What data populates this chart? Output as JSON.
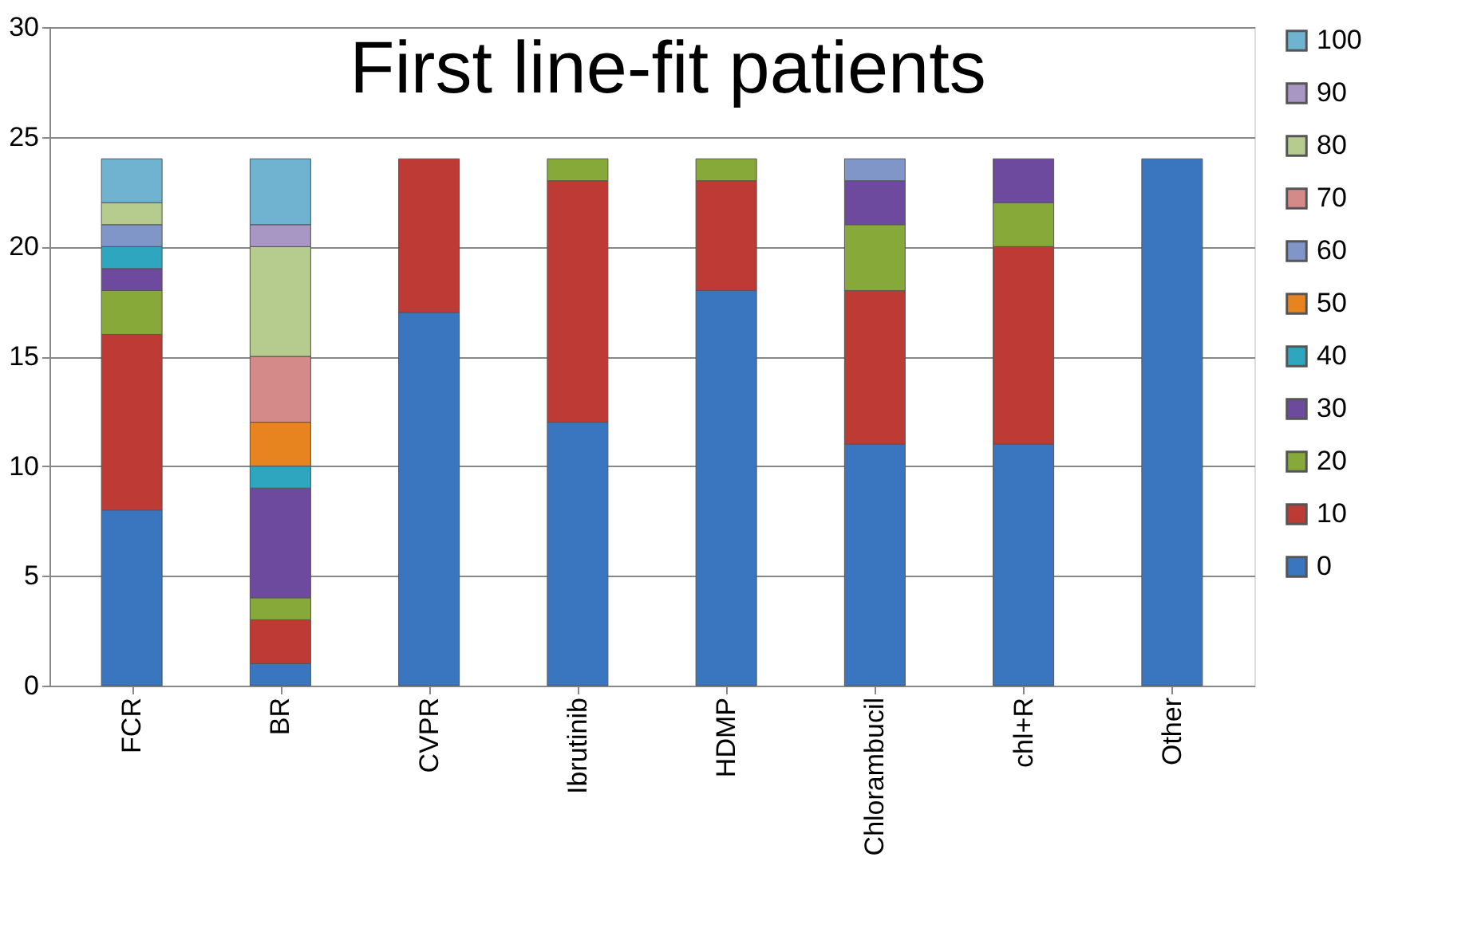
{
  "chart_data": {
    "type": "bar",
    "title": "First line-fit patients",
    "stacked": true,
    "categories": [
      "FCR",
      "BR",
      "CVPR",
      "Ibrutinib",
      "HDMP",
      "Chlorambucil",
      "chl+R",
      "Other"
    ],
    "series": [
      {
        "name": "0",
        "color": "#3a75c0",
        "values": [
          8,
          1,
          17,
          12,
          18,
          11,
          11,
          24
        ]
      },
      {
        "name": "10",
        "color": "#be3a34",
        "values": [
          8,
          2,
          7,
          11,
          5,
          7,
          9,
          null
        ]
      },
      {
        "name": "20",
        "color": "#86a93a",
        "values": [
          2,
          1,
          null,
          1,
          1,
          3,
          2,
          null
        ]
      },
      {
        "name": "30",
        "color": "#6e4a9e",
        "values": [
          1,
          5,
          null,
          null,
          null,
          2,
          2,
          null
        ]
      },
      {
        "name": "40",
        "color": "#2fa6c0",
        "values": [
          1,
          1,
          null,
          null,
          null,
          null,
          null,
          null
        ]
      },
      {
        "name": "50",
        "color": "#e8841f",
        "values": [
          null,
          2,
          null,
          null,
          null,
          null,
          null,
          null
        ]
      },
      {
        "name": "60",
        "color": "#8096c8",
        "values": [
          1,
          null,
          null,
          null,
          null,
          1,
          null,
          null
        ]
      },
      {
        "name": "70",
        "color": "#d58a8a",
        "values": [
          null,
          3,
          null,
          null,
          null,
          null,
          null,
          null
        ]
      },
      {
        "name": "80",
        "color": "#b5cc8e",
        "values": [
          1,
          5,
          null,
          null,
          null,
          null,
          null,
          null
        ]
      },
      {
        "name": "90",
        "color": "#a896c5",
        "values": [
          null,
          1,
          null,
          null,
          null,
          null,
          null,
          null
        ]
      },
      {
        "name": "100",
        "color": "#6fb3d0",
        "values": [
          2,
          3,
          null,
          null,
          null,
          null,
          null,
          null
        ]
      }
    ],
    "ylim": [
      0,
      30
    ],
    "yticks": [
      0,
      5,
      10,
      15,
      20,
      25,
      30
    ],
    "grid": "y",
    "legend": "right"
  }
}
